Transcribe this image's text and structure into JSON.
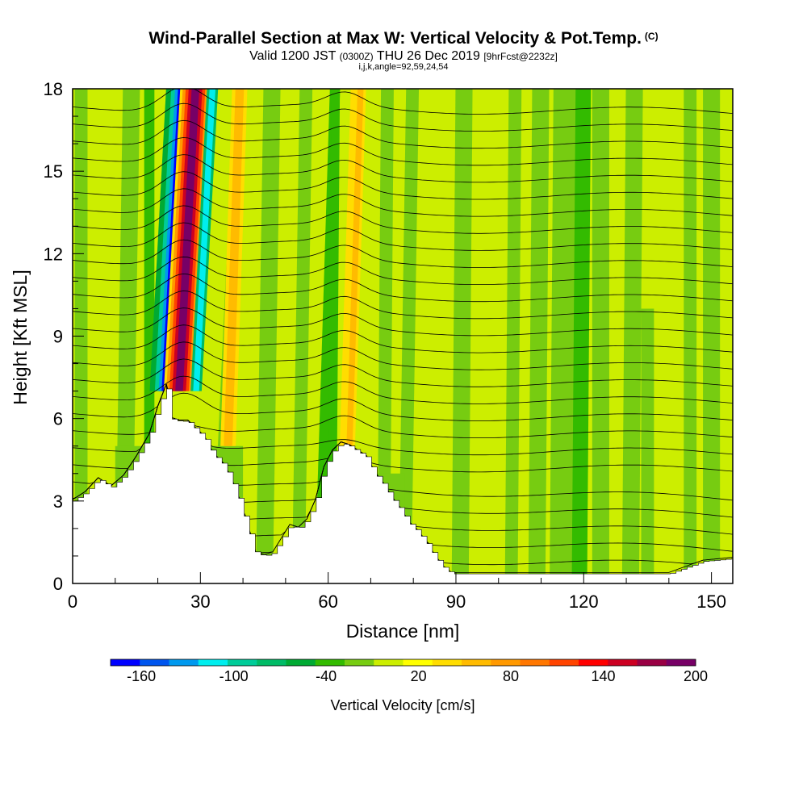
{
  "chart_data": {
    "type": "heatmap",
    "title": "Wind-Parallel Section at Max W: Vertical Velocity & Pot.Temp.",
    "title_tag": "(C)",
    "subtitle_main": "Valid 1200 JST",
    "subtitle_utc": "(0300Z)",
    "subtitle_date": "THU 26 Dec 2019",
    "subtitle_fcst": "[9hrFcst@2232z]",
    "subtitle2": "i,j,k,angle=92,59,24,54",
    "xlabel": "Distance [nm]",
    "ylabel": "Height [Kft MSL]",
    "xlim": [
      0,
      155
    ],
    "ylim": [
      0,
      18
    ],
    "xticks": [
      "0",
      "30",
      "60",
      "90",
      "120",
      "150"
    ],
    "yticks": [
      "0",
      "3",
      "6",
      "9",
      "12",
      "15",
      "18"
    ],
    "colorbar_label": "Vertical Velocity [cm/s]",
    "colorbar_ticks": [
      "-160",
      "-100",
      "-40",
      "20",
      "80",
      "140",
      "200"
    ],
    "colorbar_range": [
      -180,
      200
    ],
    "colorbar_colors": [
      "#0000ff",
      "#0055ee",
      "#0099ee",
      "#00eeee",
      "#00cc99",
      "#00bb66",
      "#00aa33",
      "#33bb00",
      "#77cc11",
      "#ccee00",
      "#ffff00",
      "#ffdd00",
      "#ffbb00",
      "#ff9900",
      "#ff7700",
      "#ff4400",
      "#ff0000",
      "#cc0022",
      "#990044",
      "#770066"
    ],
    "contour_field": "Pot.Temp.",
    "features": [
      {
        "name": "strong updraft/downdraft couplet",
        "x": 24,
        "min_w": -160,
        "max_w": 200
      },
      {
        "name": "secondary updraft",
        "x": 63,
        "max_w": 40
      }
    ],
    "terrain": [
      [
        0,
        3.0
      ],
      [
        3,
        3.3
      ],
      [
        6,
        3.8
      ],
      [
        9,
        3.5
      ],
      [
        12,
        3.9
      ],
      [
        15,
        4.6
      ],
      [
        18,
        5.4
      ],
      [
        20,
        6.4
      ],
      [
        22,
        7.2
      ],
      [
        23,
        6.0
      ],
      [
        25,
        5.9
      ],
      [
        27,
        5.9
      ],
      [
        29,
        5.6
      ],
      [
        31,
        5.3
      ],
      [
        33,
        4.7
      ],
      [
        35,
        4.4
      ],
      [
        37,
        3.9
      ],
      [
        39,
        3.1
      ],
      [
        41,
        2.1
      ],
      [
        43,
        1.1
      ],
      [
        45,
        1.0
      ],
      [
        47,
        1.1
      ],
      [
        49,
        1.6
      ],
      [
        51,
        2.1
      ],
      [
        53,
        2.0
      ],
      [
        55,
        2.3
      ],
      [
        57,
        3.0
      ],
      [
        59,
        4.2
      ],
      [
        61,
        4.8
      ],
      [
        63,
        5.1
      ],
      [
        65,
        5.0
      ],
      [
        67,
        4.8
      ],
      [
        69,
        4.6
      ],
      [
        71,
        4.0
      ],
      [
        73,
        3.6
      ],
      [
        75,
        3.1
      ],
      [
        77,
        2.7
      ],
      [
        79,
        2.2
      ],
      [
        81,
        1.9
      ],
      [
        83,
        1.5
      ],
      [
        85,
        1.0
      ],
      [
        87,
        0.6
      ],
      [
        89,
        0.35
      ],
      [
        95,
        0.35
      ],
      [
        125,
        0.35
      ],
      [
        140,
        0.35
      ],
      [
        148,
        0.8
      ],
      [
        155,
        0.9
      ]
    ]
  }
}
